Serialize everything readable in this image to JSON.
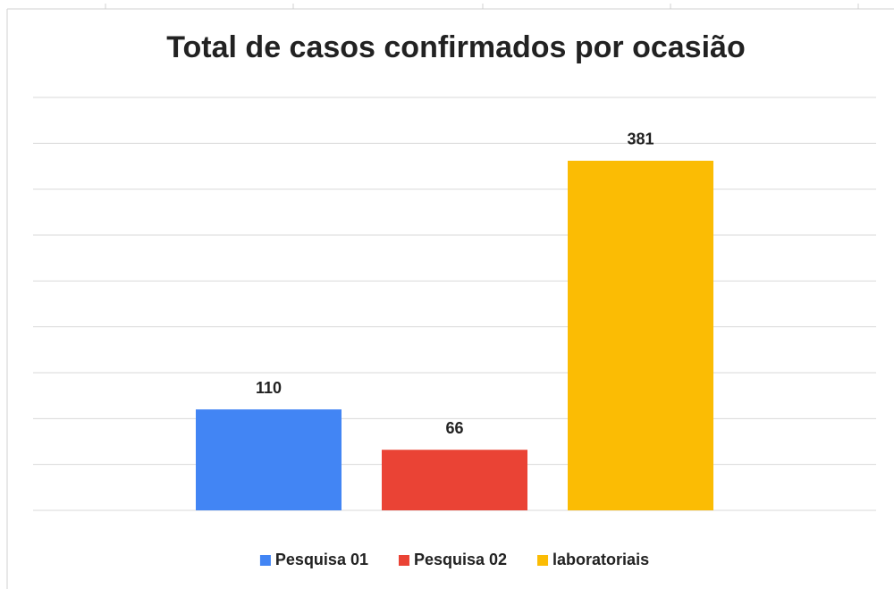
{
  "chart_data": {
    "type": "bar",
    "title": "Total de casos confirmados por ocasião",
    "categories": [
      null
    ],
    "series": [
      {
        "name": "Pesquisa 01",
        "color": "#4285f4",
        "values": [
          110
        ]
      },
      {
        "name": "Pesquisa 02",
        "color": "#ea4335",
        "values": [
          66
        ]
      },
      {
        "name": "laboratoriais",
        "color": "#fbbc04",
        "values": [
          381
        ]
      }
    ],
    "ylim": [
      0,
      450
    ],
    "yticks": [
      0,
      50,
      100,
      150,
      200,
      250,
      300,
      350,
      400,
      450
    ],
    "grid": true,
    "legend": "bottom"
  }
}
